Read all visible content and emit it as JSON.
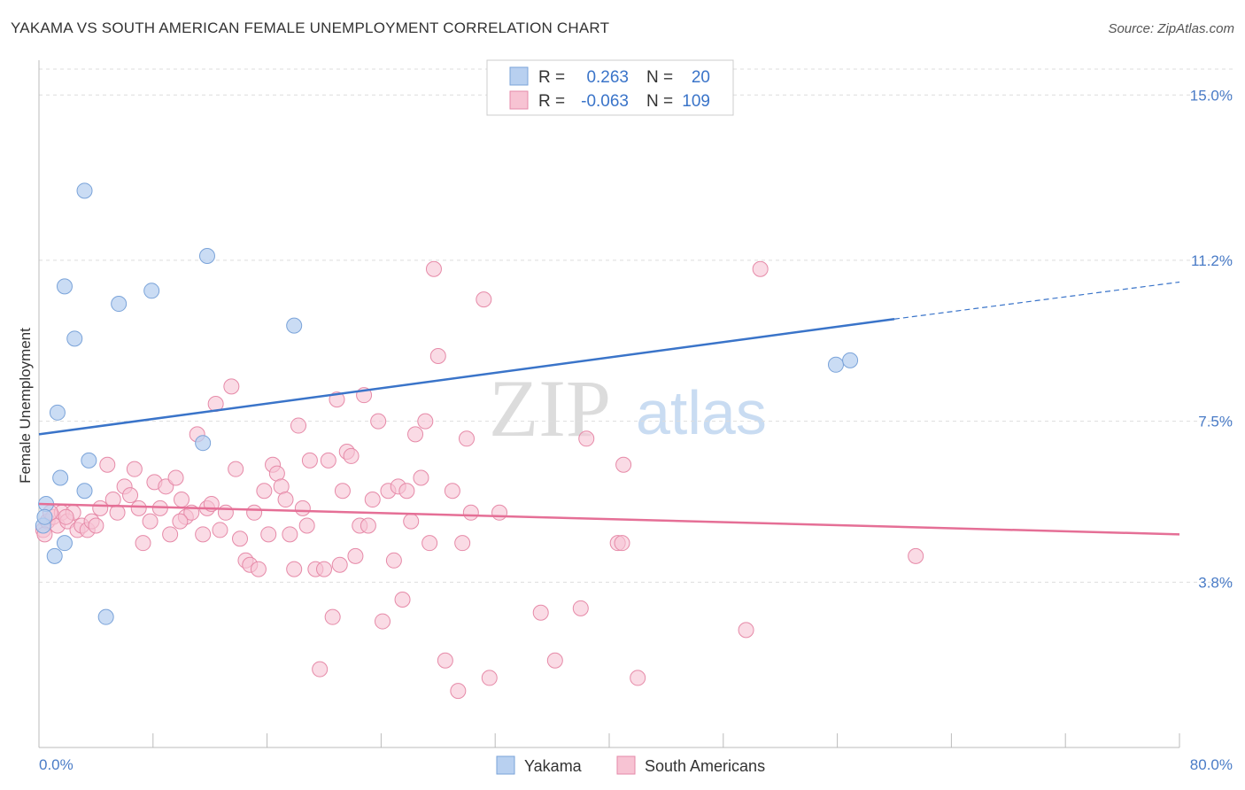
{
  "header": {
    "title": "YAKAMA VS SOUTH AMERICAN FEMALE UNEMPLOYMENT CORRELATION CHART",
    "source": "Source: ZipAtlas.com"
  },
  "watermark": {
    "zip": "ZIP",
    "atlas": "atlas"
  },
  "colors": {
    "yakama_fill": "#b8d0f0",
    "yakama_stroke": "#7aa3d9",
    "yakama_line": "#3a74c9",
    "south_fill": "#f7c3d3",
    "south_stroke": "#e68aa8",
    "south_line": "#e56f96",
    "accent_text": "#3a74c9",
    "grid": "#dddddd"
  },
  "legend": {
    "rows": [
      {
        "r_label": "R =",
        "r_value": "0.263",
        "n_label": "N =",
        "n_value": "20"
      },
      {
        "r_label": "R =",
        "r_value": "-0.063",
        "n_label": "N =",
        "n_value": "109"
      }
    ]
  },
  "chart_data": {
    "type": "scatter",
    "title": "YAKAMA VS SOUTH AMERICAN FEMALE UNEMPLOYMENT CORRELATION CHART",
    "xlabel": "",
    "ylabel": "Female Unemployment",
    "xlim": [
      0,
      80
    ],
    "ylim": [
      0,
      15.8
    ],
    "x_tick_labels": [
      "0.0%",
      "80.0%"
    ],
    "y_ticks": [
      3.8,
      7.5,
      11.2,
      15.0
    ],
    "y_tick_labels": [
      "3.8%",
      "7.5%",
      "11.2%",
      "15.0%"
    ],
    "grid": "horizontal dashed",
    "legend_position": "top-center",
    "series": [
      {
        "name": "Yakama",
        "trend": {
          "x": [
            0,
            60
          ],
          "y": [
            7.2,
            9.85
          ],
          "dashed_extension_to": [
            80,
            10.7
          ]
        },
        "points": [
          [
            3.2,
            12.8
          ],
          [
            11.8,
            11.3
          ],
          [
            1.8,
            10.6
          ],
          [
            5.6,
            10.2
          ],
          [
            7.9,
            10.5
          ],
          [
            17.9,
            9.7
          ],
          [
            2.5,
            9.4
          ],
          [
            1.3,
            7.7
          ],
          [
            11.5,
            7.0
          ],
          [
            3.5,
            6.6
          ],
          [
            1.5,
            6.2
          ],
          [
            3.2,
            5.9
          ],
          [
            0.5,
            5.6
          ],
          [
            0.3,
            5.1
          ],
          [
            1.8,
            4.7
          ],
          [
            1.1,
            4.4
          ],
          [
            4.7,
            3.0
          ],
          [
            55.9,
            8.8
          ],
          [
            56.9,
            8.9
          ],
          [
            0.4,
            5.3
          ]
        ]
      },
      {
        "name": "South Americans",
        "trend": {
          "x": [
            0,
            80
          ],
          "y": [
            5.6,
            4.9
          ]
        },
        "points": [
          [
            0.3,
            5.0
          ],
          [
            0.6,
            5.2
          ],
          [
            1.0,
            5.3
          ],
          [
            1.3,
            5.1
          ],
          [
            1.6,
            5.4
          ],
          [
            2.0,
            5.2
          ],
          [
            2.4,
            5.4
          ],
          [
            2.7,
            5.0
          ],
          [
            3.0,
            5.1
          ],
          [
            3.4,
            5.0
          ],
          [
            3.7,
            5.2
          ],
          [
            4.0,
            5.1
          ],
          [
            4.3,
            5.5
          ],
          [
            4.8,
            6.5
          ],
          [
            5.2,
            5.7
          ],
          [
            5.5,
            5.4
          ],
          [
            6.0,
            6.0
          ],
          [
            6.4,
            5.8
          ],
          [
            6.7,
            6.4
          ],
          [
            7.0,
            5.5
          ],
          [
            7.3,
            4.7
          ],
          [
            7.8,
            5.2
          ],
          [
            8.1,
            6.1
          ],
          [
            8.5,
            5.5
          ],
          [
            8.9,
            6.0
          ],
          [
            9.2,
            4.9
          ],
          [
            9.6,
            6.2
          ],
          [
            10.0,
            5.7
          ],
          [
            10.3,
            5.3
          ],
          [
            10.7,
            5.4
          ],
          [
            11.1,
            7.2
          ],
          [
            11.5,
            4.9
          ],
          [
            11.8,
            5.5
          ],
          [
            12.1,
            5.6
          ],
          [
            12.4,
            7.9
          ],
          [
            12.7,
            5.0
          ],
          [
            13.1,
            5.4
          ],
          [
            13.5,
            8.3
          ],
          [
            13.8,
            6.4
          ],
          [
            14.1,
            4.8
          ],
          [
            14.5,
            4.3
          ],
          [
            14.8,
            4.2
          ],
          [
            15.1,
            5.4
          ],
          [
            15.4,
            4.1
          ],
          [
            15.8,
            5.9
          ],
          [
            16.1,
            4.9
          ],
          [
            16.4,
            6.5
          ],
          [
            16.7,
            6.3
          ],
          [
            17.0,
            6.0
          ],
          [
            17.3,
            5.7
          ],
          [
            17.6,
            4.9
          ],
          [
            17.9,
            4.1
          ],
          [
            18.2,
            7.4
          ],
          [
            18.5,
            5.5
          ],
          [
            18.8,
            5.1
          ],
          [
            19.0,
            6.6
          ],
          [
            19.4,
            4.1
          ],
          [
            19.7,
            1.8
          ],
          [
            20.0,
            4.1
          ],
          [
            20.3,
            6.6
          ],
          [
            20.6,
            3.0
          ],
          [
            20.9,
            8.0
          ],
          [
            21.1,
            4.2
          ],
          [
            21.3,
            5.9
          ],
          [
            21.6,
            6.8
          ],
          [
            21.9,
            6.7
          ],
          [
            22.2,
            4.4
          ],
          [
            22.5,
            5.1
          ],
          [
            22.8,
            8.1
          ],
          [
            23.1,
            5.1
          ],
          [
            23.4,
            5.7
          ],
          [
            23.8,
            7.5
          ],
          [
            24.1,
            2.9
          ],
          [
            24.5,
            5.9
          ],
          [
            24.9,
            4.3
          ],
          [
            25.2,
            6.0
          ],
          [
            25.5,
            3.4
          ],
          [
            25.8,
            5.9
          ],
          [
            26.1,
            5.2
          ],
          [
            26.4,
            7.2
          ],
          [
            26.8,
            6.2
          ],
          [
            27.1,
            7.5
          ],
          [
            27.4,
            4.7
          ],
          [
            27.7,
            11.0
          ],
          [
            28.0,
            9.0
          ],
          [
            28.5,
            2.0
          ],
          [
            29.0,
            5.9
          ],
          [
            29.4,
            1.3
          ],
          [
            29.7,
            4.7
          ],
          [
            30.0,
            7.1
          ],
          [
            30.3,
            5.4
          ],
          [
            31.2,
            10.3
          ],
          [
            31.6,
            1.6
          ],
          [
            32.3,
            5.4
          ],
          [
            35.2,
            3.1
          ],
          [
            36.2,
            2.0
          ],
          [
            38.0,
            3.2
          ],
          [
            38.4,
            7.1
          ],
          [
            40.6,
            4.7
          ],
          [
            40.9,
            4.7
          ],
          [
            41.0,
            6.5
          ],
          [
            42.0,
            1.6
          ],
          [
            49.6,
            2.7
          ],
          [
            50.6,
            11.0
          ],
          [
            61.5,
            4.4
          ],
          [
            0.8,
            5.4
          ],
          [
            1.9,
            5.3
          ],
          [
            0.4,
            4.9
          ],
          [
            9.9,
            5.2
          ]
        ]
      }
    ]
  },
  "bottom_legend": [
    {
      "label": "Yakama"
    },
    {
      "label": "South Americans"
    }
  ]
}
